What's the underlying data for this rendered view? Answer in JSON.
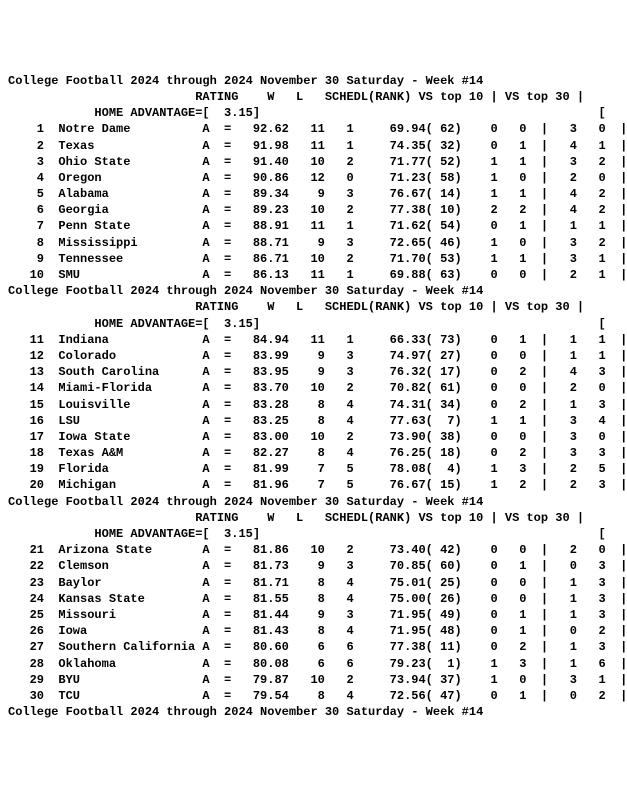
{
  "title_line": "College Football 2024 through 2024 November 30 Saturday - Week #14",
  "header_line": "                          RATING    W   L   SCHEDL(RANK) VS top 10 | VS top 30 |",
  "adv_line": "            HOME ADVANTAGE=[  3.15]                                               [",
  "colors": {
    "bg": "#ffffff",
    "fg": "#000000"
  },
  "font": {
    "family": "Courier New",
    "size_pt": 12,
    "weight": "bold"
  },
  "blocks": [
    {
      "rows": [
        {
          "rk": 1,
          "team": "Notre Dame",
          "grp": "A",
          "rating": "92.62",
          "w": 11,
          "l": 1,
          "sched": "69.94",
          "srk": 62,
          "t10w": 0,
          "t10l": 0,
          "t30w": 3,
          "t30l": 0
        },
        {
          "rk": 2,
          "team": "Texas",
          "grp": "A",
          "rating": "91.98",
          "w": 11,
          "l": 1,
          "sched": "74.35",
          "srk": 32,
          "t10w": 0,
          "t10l": 1,
          "t30w": 4,
          "t30l": 1
        },
        {
          "rk": 3,
          "team": "Ohio State",
          "grp": "A",
          "rating": "91.40",
          "w": 10,
          "l": 2,
          "sched": "71.77",
          "srk": 52,
          "t10w": 1,
          "t10l": 1,
          "t30w": 3,
          "t30l": 2
        },
        {
          "rk": 4,
          "team": "Oregon",
          "grp": "A",
          "rating": "90.86",
          "w": 12,
          "l": 0,
          "sched": "71.23",
          "srk": 58,
          "t10w": 1,
          "t10l": 0,
          "t30w": 2,
          "t30l": 0
        },
        {
          "rk": 5,
          "team": "Alabama",
          "grp": "A",
          "rating": "89.34",
          "w": 9,
          "l": 3,
          "sched": "76.67",
          "srk": 14,
          "t10w": 1,
          "t10l": 1,
          "t30w": 4,
          "t30l": 2
        },
        {
          "rk": 6,
          "team": "Georgia",
          "grp": "A",
          "rating": "89.23",
          "w": 10,
          "l": 2,
          "sched": "77.38",
          "srk": 10,
          "t10w": 2,
          "t10l": 2,
          "t30w": 4,
          "t30l": 2
        },
        {
          "rk": 7,
          "team": "Penn State",
          "grp": "A",
          "rating": "88.91",
          "w": 11,
          "l": 1,
          "sched": "71.62",
          "srk": 54,
          "t10w": 0,
          "t10l": 1,
          "t30w": 1,
          "t30l": 1
        },
        {
          "rk": 8,
          "team": "Mississippi",
          "grp": "A",
          "rating": "88.71",
          "w": 9,
          "l": 3,
          "sched": "72.65",
          "srk": 46,
          "t10w": 1,
          "t10l": 0,
          "t30w": 3,
          "t30l": 2
        },
        {
          "rk": 9,
          "team": "Tennessee",
          "grp": "A",
          "rating": "86.71",
          "w": 10,
          "l": 2,
          "sched": "71.70",
          "srk": 53,
          "t10w": 1,
          "t10l": 1,
          "t30w": 3,
          "t30l": 1
        },
        {
          "rk": 10,
          "team": "SMU",
          "grp": "A",
          "rating": "86.13",
          "w": 11,
          "l": 1,
          "sched": "69.88",
          "srk": 63,
          "t10w": 0,
          "t10l": 0,
          "t30w": 2,
          "t30l": 1
        }
      ]
    },
    {
      "rows": [
        {
          "rk": 11,
          "team": "Indiana",
          "grp": "A",
          "rating": "84.94",
          "w": 11,
          "l": 1,
          "sched": "66.33",
          "srk": 73,
          "t10w": 0,
          "t10l": 1,
          "t30w": 1,
          "t30l": 1
        },
        {
          "rk": 12,
          "team": "Colorado",
          "grp": "A",
          "rating": "83.99",
          "w": 9,
          "l": 3,
          "sched": "74.97",
          "srk": 27,
          "t10w": 0,
          "t10l": 0,
          "t30w": 1,
          "t30l": 1
        },
        {
          "rk": 13,
          "team": "South Carolina",
          "grp": "A",
          "rating": "83.95",
          "w": 9,
          "l": 3,
          "sched": "76.32",
          "srk": 17,
          "t10w": 0,
          "t10l": 2,
          "t30w": 4,
          "t30l": 3
        },
        {
          "rk": 14,
          "team": "Miami-Florida",
          "grp": "A",
          "rating": "83.70",
          "w": 10,
          "l": 2,
          "sched": "70.82",
          "srk": 61,
          "t10w": 0,
          "t10l": 0,
          "t30w": 2,
          "t30l": 0
        },
        {
          "rk": 15,
          "team": "Louisville",
          "grp": "A",
          "rating": "83.28",
          "w": 8,
          "l": 4,
          "sched": "74.31",
          "srk": 34,
          "t10w": 0,
          "t10l": 2,
          "t30w": 1,
          "t30l": 3
        },
        {
          "rk": 16,
          "team": "LSU",
          "grp": "A",
          "rating": "83.25",
          "w": 8,
          "l": 4,
          "sched": "77.63",
          "srk": 7,
          "t10w": 1,
          "t10l": 1,
          "t30w": 3,
          "t30l": 4
        },
        {
          "rk": 17,
          "team": "Iowa State",
          "grp": "A",
          "rating": "83.00",
          "w": 10,
          "l": 2,
          "sched": "73.90",
          "srk": 38,
          "t10w": 0,
          "t10l": 0,
          "t30w": 3,
          "t30l": 0
        },
        {
          "rk": 18,
          "team": "Texas A&M",
          "grp": "A",
          "rating": "82.27",
          "w": 8,
          "l": 4,
          "sched": "76.25",
          "srk": 18,
          "t10w": 0,
          "t10l": 2,
          "t30w": 3,
          "t30l": 3
        },
        {
          "rk": 19,
          "team": "Florida",
          "grp": "A",
          "rating": "81.99",
          "w": 7,
          "l": 5,
          "sched": "78.08",
          "srk": 4,
          "t10w": 1,
          "t10l": 3,
          "t30w": 2,
          "t30l": 5
        },
        {
          "rk": 20,
          "team": "Michigan",
          "grp": "A",
          "rating": "81.96",
          "w": 7,
          "l": 5,
          "sched": "76.67",
          "srk": 15,
          "t10w": 1,
          "t10l": 2,
          "t30w": 2,
          "t30l": 3
        }
      ]
    },
    {
      "rows": [
        {
          "rk": 21,
          "team": "Arizona State",
          "grp": "A",
          "rating": "81.86",
          "w": 10,
          "l": 2,
          "sched": "73.40",
          "srk": 42,
          "t10w": 0,
          "t10l": 0,
          "t30w": 2,
          "t30l": 0
        },
        {
          "rk": 22,
          "team": "Clemson",
          "grp": "A",
          "rating": "81.73",
          "w": 9,
          "l": 3,
          "sched": "70.85",
          "srk": 60,
          "t10w": 0,
          "t10l": 1,
          "t30w": 0,
          "t30l": 3
        },
        {
          "rk": 23,
          "team": "Baylor",
          "grp": "A",
          "rating": "81.71",
          "w": 8,
          "l": 4,
          "sched": "75.01",
          "srk": 25,
          "t10w": 0,
          "t10l": 0,
          "t30w": 1,
          "t30l": 3
        },
        {
          "rk": 24,
          "team": "Kansas State",
          "grp": "A",
          "rating": "81.55",
          "w": 8,
          "l": 4,
          "sched": "75.00",
          "srk": 26,
          "t10w": 0,
          "t10l": 0,
          "t30w": 1,
          "t30l": 3
        },
        {
          "rk": 25,
          "team": "Missouri",
          "grp": "A",
          "rating": "81.44",
          "w": 9,
          "l": 3,
          "sched": "71.95",
          "srk": 49,
          "t10w": 0,
          "t10l": 1,
          "t30w": 1,
          "t30l": 3
        },
        {
          "rk": 26,
          "team": "Iowa",
          "grp": "A",
          "rating": "81.43",
          "w": 8,
          "l": 4,
          "sched": "71.95",
          "srk": 48,
          "t10w": 0,
          "t10l": 1,
          "t30w": 0,
          "t30l": 2
        },
        {
          "rk": 27,
          "team": "Southern California",
          "grp": "A",
          "rating": "80.60",
          "w": 6,
          "l": 6,
          "sched": "77.38",
          "srk": 11,
          "t10w": 0,
          "t10l": 2,
          "t30w": 1,
          "t30l": 3
        },
        {
          "rk": 28,
          "team": "Oklahoma",
          "grp": "A",
          "rating": "80.08",
          "w": 6,
          "l": 6,
          "sched": "79.23",
          "srk": 1,
          "t10w": 1,
          "t10l": 3,
          "t30w": 1,
          "t30l": 6
        },
        {
          "rk": 29,
          "team": "BYU",
          "grp": "A",
          "rating": "79.87",
          "w": 10,
          "l": 2,
          "sched": "73.94",
          "srk": 37,
          "t10w": 1,
          "t10l": 0,
          "t30w": 3,
          "t30l": 1
        },
        {
          "rk": 30,
          "team": "TCU",
          "grp": "A",
          "rating": "79.54",
          "w": 8,
          "l": 4,
          "sched": "72.56",
          "srk": 47,
          "t10w": 0,
          "t10l": 1,
          "t30w": 0,
          "t30l": 2
        }
      ]
    }
  ],
  "trailing_title": true
}
